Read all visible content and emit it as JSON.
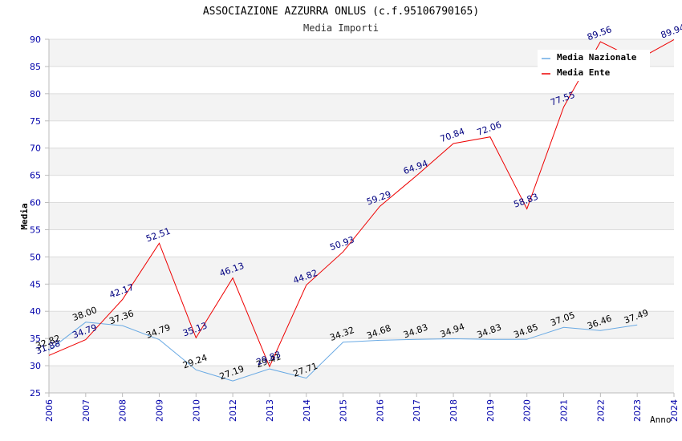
{
  "chart_data": {
    "type": "line",
    "title": "ASSOCIAZIONE AZZURRA ONLUS (c.f.95106790165)",
    "subtitle": "Media Importi",
    "xlabel": "Anno",
    "ylabel": "Media",
    "ylim": [
      25,
      90
    ],
    "yticks": [
      "25",
      "30",
      "35",
      "40",
      "45",
      "50",
      "55",
      "60",
      "65",
      "70",
      "75",
      "80",
      "85",
      "90"
    ],
    "categories": [
      "2006",
      "2007",
      "2008",
      "2009",
      "2010",
      "2012",
      "2013",
      "2014",
      "2015",
      "2016",
      "2017",
      "2018",
      "2019",
      "2020",
      "2021",
      "2022",
      "2023",
      "2024"
    ],
    "legend_position": "top-right",
    "series": [
      {
        "name": "Media Nazionale",
        "color": "#6aaae4",
        "label_color": "#000000",
        "values": [
          32.82,
          38.0,
          37.36,
          34.79,
          29.24,
          27.19,
          29.41,
          27.71,
          34.32,
          34.68,
          34.83,
          34.94,
          34.83,
          34.85,
          37.05,
          36.46,
          37.49,
          null
        ],
        "labels": [
          "32.82",
          "38.00",
          "37.36",
          "34.79",
          "29.24",
          "27.19",
          "29.41",
          "27.71",
          "34.32",
          "34.68",
          "34.83",
          "34.94",
          "34.83",
          "34.85",
          "37.05",
          "36.46",
          "37.49",
          ""
        ]
      },
      {
        "name": "Media Ente",
        "color": "#ee0000",
        "label_color": "#000080",
        "values": [
          31.88,
          34.79,
          42.17,
          52.51,
          35.13,
          46.13,
          29.83,
          44.82,
          50.93,
          59.29,
          64.94,
          70.84,
          72.06,
          58.83,
          77.55,
          89.56,
          86.2,
          89.94
        ],
        "labels": [
          "31.88",
          "34.79",
          "42.17",
          "52.51",
          "35.13",
          "46.13",
          "29.83",
          "44.82",
          "50.93",
          "59.29",
          "64.94",
          "70.84",
          "72.06",
          "58.83",
          "77.55",
          "89.56",
          "",
          "89.94"
        ]
      }
    ]
  }
}
